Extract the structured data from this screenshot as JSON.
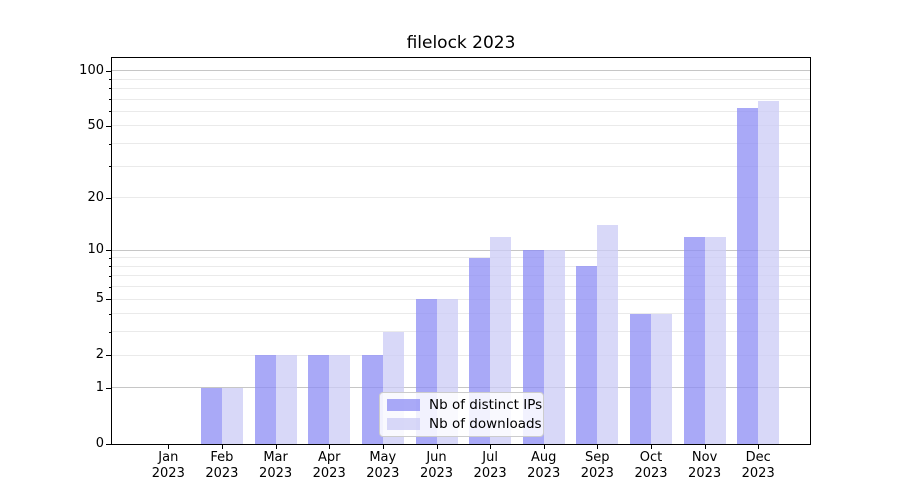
{
  "title": "filelock 2023",
  "chart_data": {
    "type": "bar",
    "title": "filelock 2023",
    "categories": [
      "Jan 2023",
      "Feb 2023",
      "Mar 2023",
      "Apr 2023",
      "May 2023",
      "Jun 2023",
      "Jul 2023",
      "Aug 2023",
      "Sep 2023",
      "Oct 2023",
      "Nov 2023",
      "Dec 2023"
    ],
    "series": [
      {
        "name": "Nb of distinct IPs",
        "color": "rgba(140,140,244,0.75)",
        "values": [
          0,
          1,
          2,
          2,
          2,
          5,
          9,
          10,
          8,
          4,
          12,
          63
        ]
      },
      {
        "name": "Nb of downloads",
        "color": "rgba(203,203,246,0.75)",
        "values": [
          0,
          1,
          2,
          2,
          3,
          5,
          12,
          10,
          14,
          4,
          12,
          68
        ]
      }
    ],
    "xlabel": "",
    "ylabel": "",
    "yscale": "log1p",
    "ylim": [
      0,
      117
    ],
    "yticks_labeled": [
      0,
      1,
      2,
      5,
      10,
      20,
      50,
      100
    ],
    "y_gridlines_major": [
      1,
      10,
      100
    ],
    "y_gridlines_minor": [
      2,
      3,
      4,
      5,
      6,
      7,
      8,
      9,
      20,
      30,
      40,
      50,
      60,
      70,
      80,
      90
    ],
    "grid": true,
    "legend_position": "lower center",
    "bar_colors": {
      "distinct_ips": "#a9a9f7",
      "downloads": "#d9d9f8"
    },
    "spine_color": "#000000"
  }
}
